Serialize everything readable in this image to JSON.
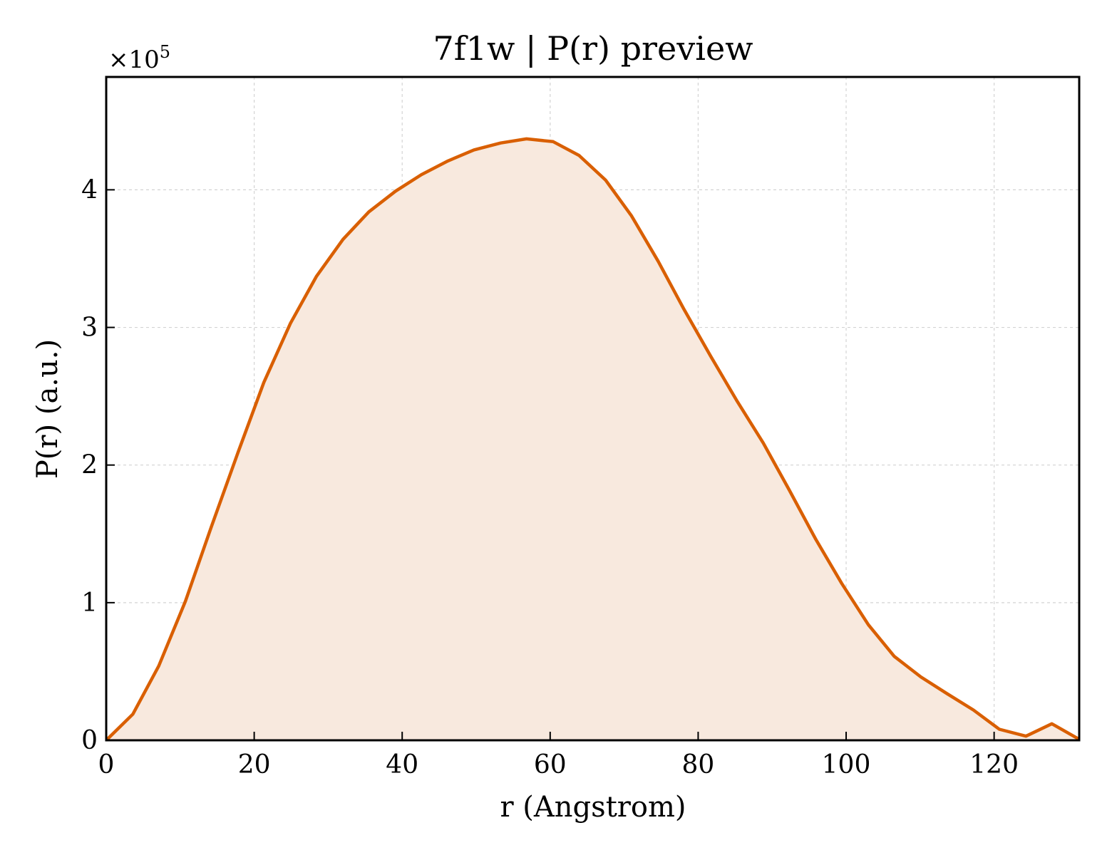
{
  "chart_data": {
    "type": "area",
    "title": "7f1w | P(r) preview",
    "xlabel": "r (Angstrom)",
    "ylabel": "P(r) (a.u.)",
    "y_offset_label": "×10",
    "y_offset_exponent": "5",
    "xlim": [
      0,
      131.5
    ],
    "ylim": [
      0,
      4.82
    ],
    "x_ticks": [
      0,
      20,
      40,
      60,
      80,
      100,
      120
    ],
    "y_ticks": [
      0,
      1,
      2,
      3,
      4
    ],
    "grid": true,
    "line_color": "#d95f02",
    "fill_color": "#f8e9de",
    "series": [
      {
        "x": [
          0,
          3.6,
          7.1,
          10.7,
          14.2,
          17.8,
          21.3,
          24.9,
          28.4,
          32.0,
          35.5,
          39.1,
          42.6,
          46.2,
          49.7,
          53.3,
          56.8,
          60.4,
          63.9,
          67.5,
          71.0,
          74.6,
          78.1,
          81.7,
          85.2,
          88.8,
          92.3,
          95.9,
          99.4,
          103.0,
          106.5,
          110.1,
          113.6,
          117.2,
          120.7,
          124.3,
          127.8,
          131.4
        ],
        "y": [
          0.0,
          0.19,
          0.54,
          1.01,
          1.55,
          2.09,
          2.6,
          3.03,
          3.37,
          3.64,
          3.84,
          3.99,
          4.11,
          4.21,
          4.29,
          4.34,
          4.37,
          4.35,
          4.25,
          4.07,
          3.81,
          3.48,
          3.13,
          2.79,
          2.47,
          2.16,
          1.82,
          1.46,
          1.14,
          0.84,
          0.61,
          0.46,
          0.34,
          0.22,
          0.08,
          0.03,
          0.12,
          0.01
        ]
      }
    ]
  }
}
